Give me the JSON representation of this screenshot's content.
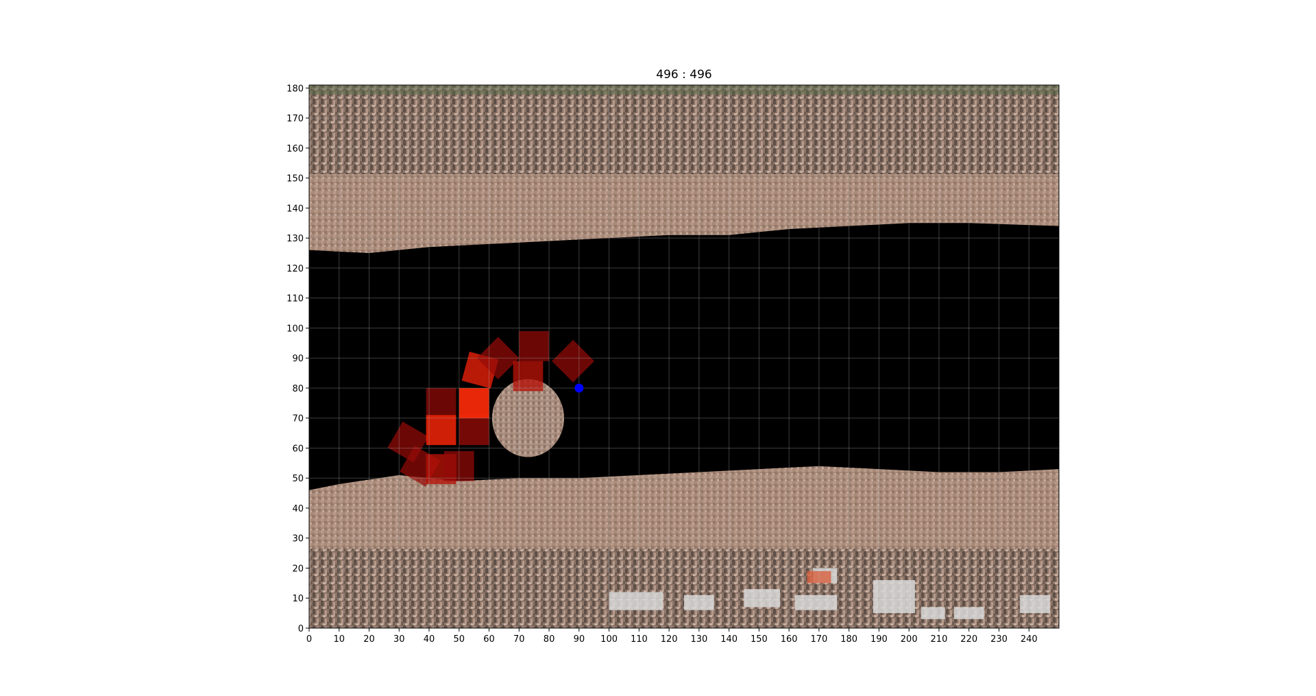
{
  "chart_data": {
    "type": "heatmap",
    "title": "496 : 496",
    "xlabel": "",
    "ylabel": "",
    "xlim": [
      0,
      250
    ],
    "ylim": [
      0,
      181
    ],
    "x_ticks": [
      0,
      10,
      20,
      30,
      40,
      50,
      60,
      70,
      80,
      90,
      100,
      110,
      120,
      130,
      140,
      150,
      160,
      170,
      180,
      190,
      200,
      210,
      220,
      230,
      240
    ],
    "y_ticks": [
      0,
      10,
      20,
      30,
      40,
      50,
      60,
      70,
      80,
      90,
      100,
      110,
      120,
      130,
      140,
      150,
      160,
      170,
      180
    ],
    "x_tick_labels": [
      "0",
      "10",
      "20",
      "30",
      "40",
      "50",
      "60",
      "70",
      "80",
      "90",
      "100",
      "110",
      "120",
      "130",
      "140",
      "150",
      "160",
      "170",
      "180",
      "190",
      "200",
      "210",
      "220",
      "230",
      "240"
    ],
    "y_tick_labels": [
      "0",
      "10",
      "20",
      "30",
      "40",
      "50",
      "60",
      "70",
      "80",
      "90",
      "100",
      "110",
      "120",
      "130",
      "140",
      "150",
      "160",
      "170",
      "180"
    ],
    "grid": true,
    "background": "aerial image of a river channel with sandy banks",
    "water_channel": {
      "lower_edge": [
        [
          0,
          46
        ],
        [
          10,
          48
        ],
        [
          30,
          51
        ],
        [
          50,
          49
        ],
        [
          70,
          50
        ],
        [
          90,
          50
        ],
        [
          110,
          51
        ],
        [
          130,
          52
        ],
        [
          150,
          53
        ],
        [
          170,
          54
        ],
        [
          190,
          53
        ],
        [
          210,
          52
        ],
        [
          230,
          52
        ],
        [
          250,
          53
        ]
      ],
      "upper_edge": [
        [
          0,
          126
        ],
        [
          20,
          125
        ],
        [
          40,
          127
        ],
        [
          60,
          128
        ],
        [
          80,
          129
        ],
        [
          100,
          130
        ],
        [
          120,
          131
        ],
        [
          140,
          131
        ],
        [
          160,
          133
        ],
        [
          180,
          134
        ],
        [
          200,
          135
        ],
        [
          220,
          135
        ],
        [
          250,
          134
        ]
      ]
    },
    "obstacle": {
      "x": 73,
      "y": 70,
      "rx": 12,
      "ry": 13
    },
    "cells": [
      {
        "x": 33,
        "y": 62,
        "angle": 30,
        "intensity": 0.35
      },
      {
        "x": 37,
        "y": 54,
        "angle": 30,
        "intensity": 0.35
      },
      {
        "x": 44,
        "y": 53,
        "angle": 0,
        "intensity": 0.55
      },
      {
        "x": 50,
        "y": 54,
        "angle": 0,
        "intensity": 0.35
      },
      {
        "x": 44,
        "y": 75,
        "angle": 0,
        "intensity": 0.35
      },
      {
        "x": 44,
        "y": 66,
        "angle": 0,
        "intensity": 0.85
      },
      {
        "x": 55,
        "y": 66,
        "angle": 0,
        "intensity": 0.4
      },
      {
        "x": 55,
        "y": 75,
        "angle": 0,
        "intensity": 0.95
      },
      {
        "x": 57,
        "y": 86,
        "angle": 15,
        "intensity": 0.75
      },
      {
        "x": 63,
        "y": 90,
        "angle": 45,
        "intensity": 0.35
      },
      {
        "x": 75,
        "y": 94,
        "angle": 0,
        "intensity": 0.35
      },
      {
        "x": 73,
        "y": 84,
        "angle": 0,
        "intensity": 0.55
      },
      {
        "x": 88,
        "y": 89,
        "angle": 45,
        "intensity": 0.35
      }
    ],
    "agent_point": {
      "x": 90,
      "y": 80,
      "color": "#0000ff"
    }
  }
}
